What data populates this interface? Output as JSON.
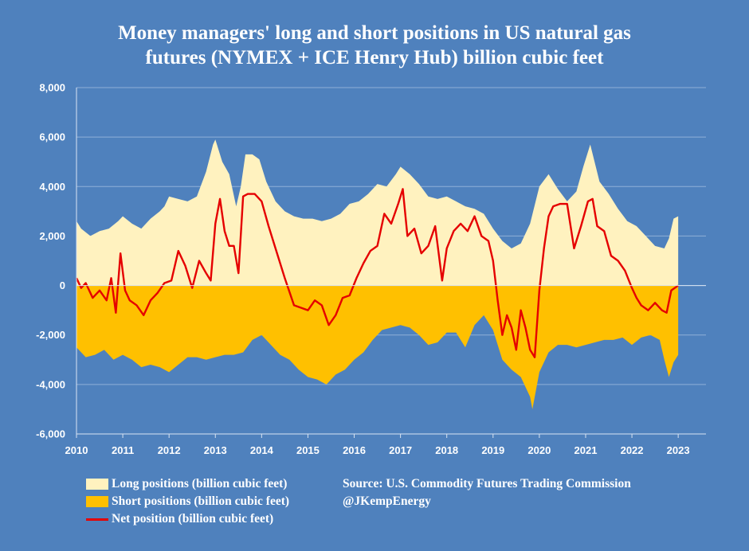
{
  "title_lines": [
    "Money managers' long and short positions in US natural gas",
    "futures (NYMEX + ICE Henry Hub) billion cubic feet"
  ],
  "legend": {
    "long": "Long positions (billion cubic feet)",
    "short": "Short positions (billion cubic feet)",
    "net": "Net position (billion cubic feet)"
  },
  "source": {
    "line1": "Source: U.S. Commodity Futures Trading Commission",
    "line2": "@JKempEnergy"
  },
  "colors": {
    "background": "#4f81bd",
    "long": "#fff2bf",
    "short": "#ffc000",
    "net": "#e50000",
    "grid": "#8fb0d8"
  },
  "chart_data": {
    "type": "area",
    "x_unit": "year",
    "xlim": [
      2010,
      2023.6
    ],
    "ylim": [
      -6000,
      8000
    ],
    "grid": true,
    "legend_position": "bottom-left",
    "x_tick_labels": [
      "2010",
      "2011",
      "2012",
      "2013",
      "2014",
      "2015",
      "2016",
      "2017",
      "2018",
      "2019",
      "2020",
      "2021",
      "2022",
      "2023"
    ],
    "y_tick_labels": [
      "8,000",
      "6,000",
      "4,000",
      "2,000",
      "0",
      "-2,000",
      "-4,000",
      "-6,000"
    ],
    "y_tick_values": [
      8000,
      6000,
      4000,
      2000,
      0,
      -2000,
      -4000,
      -6000
    ],
    "series": [
      {
        "name": "Long positions (billion cubic feet)",
        "x": [
          2010.0,
          2010.1,
          2010.3,
          2010.5,
          2010.7,
          2010.9,
          2011.0,
          2011.2,
          2011.4,
          2011.6,
          2011.8,
          2011.9,
          2012.0,
          2012.2,
          2012.4,
          2012.6,
          2012.8,
          2012.95,
          2013.0,
          2013.15,
          2013.3,
          2013.45,
          2013.55,
          2013.65,
          2013.8,
          2013.95,
          2014.1,
          2014.3,
          2014.5,
          2014.7,
          2014.9,
          2015.1,
          2015.3,
          2015.5,
          2015.7,
          2015.9,
          2016.1,
          2016.3,
          2016.5,
          2016.7,
          2016.9,
          2017.0,
          2017.2,
          2017.4,
          2017.6,
          2017.8,
          2018.0,
          2018.2,
          2018.4,
          2018.6,
          2018.8,
          2019.0,
          2019.2,
          2019.4,
          2019.6,
          2019.8,
          2020.0,
          2020.2,
          2020.4,
          2020.6,
          2020.8,
          2020.95,
          2021.1,
          2021.3,
          2021.5,
          2021.7,
          2021.9,
          2022.1,
          2022.3,
          2022.5,
          2022.7,
          2022.8,
          2022.9,
          2023.0
        ],
        "values": [
          2600,
          2300,
          2000,
          2200,
          2300,
          2600,
          2800,
          2500,
          2300,
          2700,
          3000,
          3200,
          3600,
          3500,
          3400,
          3600,
          4600,
          5700,
          5900,
          5000,
          4500,
          3200,
          4000,
          5300,
          5300,
          5100,
          4200,
          3400,
          3000,
          2800,
          2700,
          2700,
          2600,
          2700,
          2900,
          3300,
          3400,
          3700,
          4100,
          4000,
          4500,
          4800,
          4500,
          4100,
          3600,
          3500,
          3600,
          3400,
          3200,
          3100,
          2900,
          2300,
          1800,
          1500,
          1700,
          2500,
          4000,
          4500,
          3900,
          3400,
          3800,
          4800,
          5700,
          4200,
          3700,
          3100,
          2600,
          2400,
          2000,
          1600,
          1500,
          1900,
          2700,
          2800
        ]
      },
      {
        "name": "Short positions (billion cubic feet)",
        "x": [
          2010.0,
          2010.2,
          2010.4,
          2010.6,
          2010.8,
          2011.0,
          2011.2,
          2011.4,
          2011.6,
          2011.8,
          2012.0,
          2012.2,
          2012.4,
          2012.6,
          2012.8,
          2013.0,
          2013.2,
          2013.4,
          2013.6,
          2013.8,
          2014.0,
          2014.2,
          2014.4,
          2014.6,
          2014.8,
          2015.0,
          2015.2,
          2015.4,
          2015.6,
          2015.8,
          2016.0,
          2016.2,
          2016.4,
          2016.6,
          2016.8,
          2017.0,
          2017.2,
          2017.4,
          2017.6,
          2017.8,
          2018.0,
          2018.2,
          2018.4,
          2018.6,
          2018.8,
          2019.0,
          2019.2,
          2019.4,
          2019.6,
          2019.8,
          2019.85,
          2020.0,
          2020.2,
          2020.4,
          2020.6,
          2020.8,
          2021.0,
          2021.2,
          2021.4,
          2021.6,
          2021.8,
          2022.0,
          2022.2,
          2022.4,
          2022.6,
          2022.7,
          2022.8,
          2022.9,
          2023.0
        ],
        "values": [
          -2500,
          -2900,
          -2800,
          -2600,
          -3000,
          -2800,
          -3000,
          -3300,
          -3200,
          -3300,
          -3500,
          -3200,
          -2900,
          -2900,
          -3000,
          -2900,
          -2800,
          -2800,
          -2700,
          -2200,
          -2000,
          -2400,
          -2800,
          -3000,
          -3400,
          -3700,
          -3800,
          -4000,
          -3600,
          -3400,
          -3000,
          -2700,
          -2200,
          -1800,
          -1700,
          -1600,
          -1700,
          -2000,
          -2400,
          -2300,
          -1900,
          -1900,
          -2500,
          -1600,
          -1200,
          -1800,
          -3000,
          -3400,
          -3700,
          -4500,
          -5000,
          -3500,
          -2700,
          -2400,
          -2400,
          -2500,
          -2400,
          -2300,
          -2200,
          -2200,
          -2100,
          -2400,
          -2100,
          -2000,
          -2200,
          -3000,
          -3700,
          -3100,
          -2800
        ]
      },
      {
        "name": "Net position (billion cubic feet)",
        "x": [
          2010.0,
          2010.1,
          2010.2,
          2010.35,
          2010.5,
          2010.65,
          2010.75,
          2010.85,
          2010.95,
          2011.05,
          2011.15,
          2011.3,
          2011.45,
          2011.6,
          2011.75,
          2011.9,
          2012.05,
          2012.2,
          2012.35,
          2012.5,
          2012.65,
          2012.8,
          2012.9,
          2013.0,
          2013.1,
          2013.2,
          2013.3,
          2013.4,
          2013.5,
          2013.6,
          2013.7,
          2013.85,
          2014.0,
          2014.15,
          2014.3,
          2014.5,
          2014.7,
          2014.85,
          2015.0,
          2015.15,
          2015.3,
          2015.45,
          2015.6,
          2015.75,
          2015.9,
          2016.05,
          2016.2,
          2016.35,
          2016.5,
          2016.65,
          2016.8,
          2016.95,
          2017.05,
          2017.15,
          2017.3,
          2017.45,
          2017.6,
          2017.75,
          2017.9,
          2018.0,
          2018.15,
          2018.3,
          2018.45,
          2018.6,
          2018.75,
          2018.9,
          2019.0,
          2019.1,
          2019.2,
          2019.3,
          2019.4,
          2019.5,
          2019.6,
          2019.7,
          2019.8,
          2019.9,
          2020.0,
          2020.1,
          2020.2,
          2020.3,
          2020.45,
          2020.6,
          2020.75,
          2020.9,
          2021.05,
          2021.15,
          2021.25,
          2021.4,
          2021.55,
          2021.7,
          2021.85,
          2022.0,
          2022.1,
          2022.2,
          2022.35,
          2022.5,
          2022.65,
          2022.75,
          2022.85,
          2023.0
        ],
        "values": [
          300,
          -100,
          100,
          -500,
          -200,
          -600,
          300,
          -1100,
          1300,
          -200,
          -600,
          -800,
          -1200,
          -600,
          -300,
          100,
          200,
          1400,
          800,
          -100,
          1000,
          500,
          200,
          2500,
          3500,
          2200,
          1600,
          1600,
          500,
          3600,
          3700,
          3700,
          3400,
          2400,
          1500,
          300,
          -800,
          -900,
          -1000,
          -600,
          -800,
          -1600,
          -1200,
          -500,
          -400,
          300,
          900,
          1400,
          1600,
          2900,
          2500,
          3300,
          3900,
          2000,
          2300,
          1300,
          1600,
          2400,
          200,
          1500,
          2200,
          2500,
          2200,
          2800,
          2000,
          1800,
          1000,
          -600,
          -2000,
          -1200,
          -1700,
          -2600,
          -1000,
          -1700,
          -2600,
          -2900,
          -200,
          1500,
          2800,
          3200,
          3300,
          3300,
          1500,
          2400,
          3400,
          3500,
          2400,
          2200,
          1200,
          1000,
          600,
          -100,
          -500,
          -800,
          -1000,
          -700,
          -1000,
          -1100,
          -200,
          0
        ]
      }
    ]
  }
}
